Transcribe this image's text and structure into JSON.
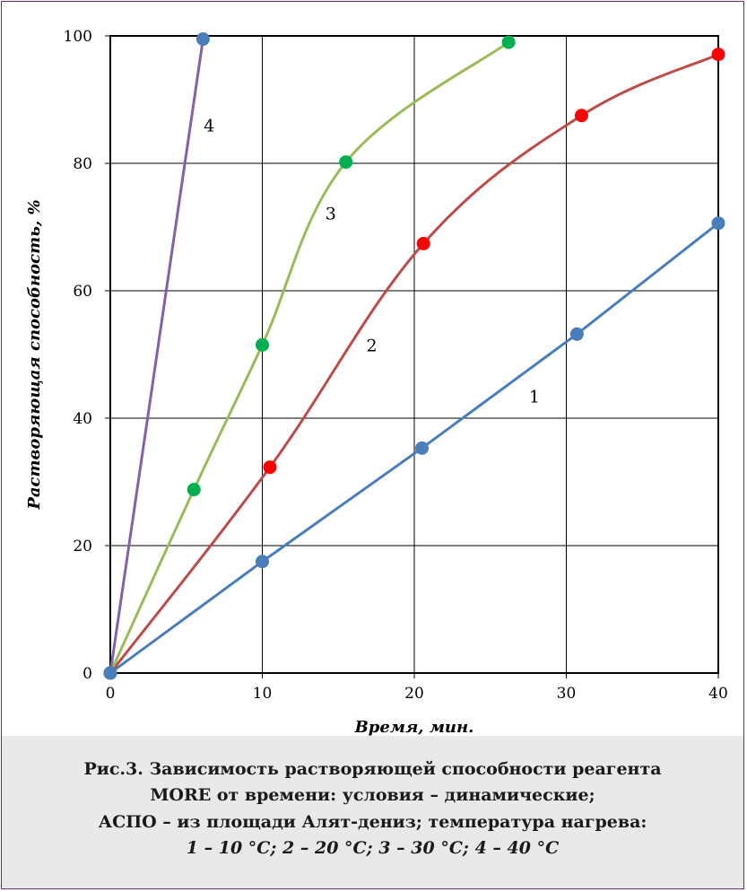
{
  "chart_data": {
    "type": "line",
    "title": "",
    "xlabel": "Время, мин.",
    "ylabel": "Растворяющая способность, %",
    "xlim": [
      0,
      40
    ],
    "ylim": [
      0,
      100
    ],
    "x_ticks": [
      0,
      10,
      20,
      30,
      40
    ],
    "y_ticks": [
      0,
      20,
      40,
      60,
      80,
      100
    ],
    "grid": true,
    "legend": "none",
    "series": [
      {
        "name": "1",
        "color": "#4a7ebb",
        "marker_color": "#4a7ebb",
        "x": [
          0,
          10,
          20.5,
          30.7,
          40
        ],
        "y": [
          0,
          17.5,
          35.3,
          53.2,
          70.6
        ],
        "label_at": [
          27.9,
          42.5
        ]
      },
      {
        "name": "2",
        "color": "#be4b48",
        "marker_color": "#ff0000",
        "x": [
          0,
          10.5,
          20.6,
          31,
          40
        ],
        "y": [
          0,
          32.3,
          67.4,
          87.5,
          97.1
        ],
        "label_at": [
          17.2,
          50.5
        ]
      },
      {
        "name": "3",
        "color": "#9bbb59",
        "marker_color": "#00b050",
        "x": [
          0,
          5.5,
          10,
          15.5,
          26.2
        ],
        "y": [
          0,
          28.8,
          51.5,
          80.2,
          99
        ],
        "label_at": [
          14.5,
          71.2
        ]
      },
      {
        "name": "4",
        "color": "#7f62a8",
        "marker_color": "#4a7ebb",
        "x": [
          0,
          6.1
        ],
        "y": [
          0,
          99.5
        ],
        "label_at": [
          6.5,
          85
        ]
      }
    ]
  },
  "caption": {
    "line1": "Рис.3. Зависимость растворяющей способности реагента",
    "line2": "MORE  от времени: условия – динамические;",
    "line3": "АСПО – из  площади Алят-дениз;  температура нагрева:",
    "line4": "1 – 10 °C;  2 – 20 °C; 3 – 30 °C;  4 – 40 °C"
  }
}
